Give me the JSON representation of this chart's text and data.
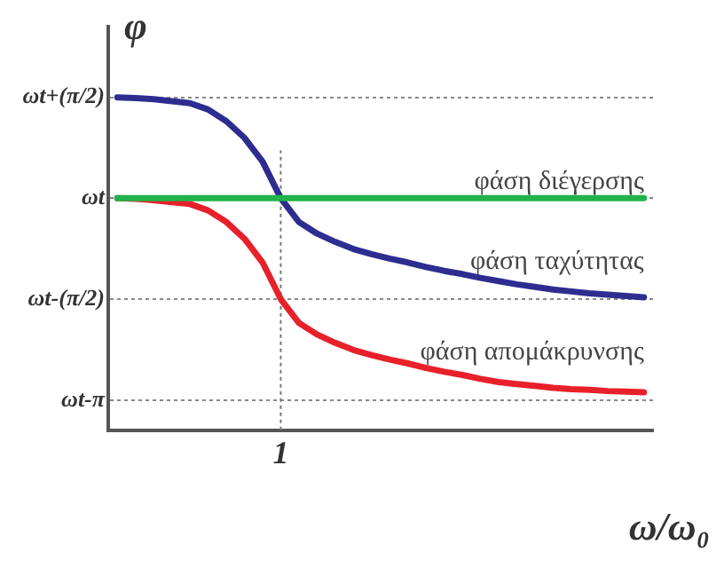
{
  "chart_data": {
    "type": "line",
    "xlabel": "ω/ω₀",
    "ylabel": "φ",
    "categories": [
      null,
      null,
      null,
      null,
      null,
      null,
      null,
      null,
      null,
      "1",
      null,
      null,
      null,
      null,
      null,
      null,
      null,
      null,
      null,
      null,
      null,
      null,
      null,
      null,
      null,
      null,
      null,
      null,
      null,
      null
    ],
    "ylim": [
      -3.61,
      2.67
    ],
    "yticks": [
      {
        "value": -3.1416,
        "label": "ωt-π"
      },
      {
        "value": -1.5708,
        "label": "ωt-(π/2)"
      },
      {
        "value": 0,
        "label": "ωt"
      },
      {
        "value": 1.5708,
        "label": "ωt+(π/2)"
      }
    ],
    "grid": "y",
    "legend": false,
    "marker": "none",
    "line_style": "solid",
    "ref_lines": [
      {
        "axis": "x",
        "value": "1",
        "label": null
      }
    ],
    "series": [
      {
        "name": "φάση διέγερσης",
        "color": "#22b24c",
        "values": [
          0,
          0,
          0,
          0,
          0,
          0,
          0,
          0,
          0,
          0,
          0,
          0,
          0,
          0,
          0,
          0,
          0,
          0,
          0,
          0,
          0,
          0,
          0,
          0,
          0,
          0,
          0,
          0,
          0,
          0
        ]
      },
      {
        "name": "φάση ταχύτητας",
        "color": "#2e2d8f",
        "values": [
          1.57,
          1.56,
          1.54,
          1.51,
          1.48,
          1.38,
          1.2,
          0.94,
          0.57,
          0,
          -0.37,
          -0.55,
          -0.68,
          -0.79,
          -0.87,
          -0.94,
          -1.0,
          -1.07,
          -1.13,
          -1.18,
          -1.24,
          -1.29,
          -1.34,
          -1.38,
          -1.42,
          -1.45,
          -1.48,
          -1.5,
          -1.52,
          -1.54
        ]
      },
      {
        "name": "φάση απομάκρυνσης",
        "color": "#e8202a",
        "values": [
          0,
          -0.01,
          -0.03,
          -0.06,
          -0.09,
          -0.19,
          -0.37,
          -0.63,
          -1.0,
          -1.57,
          -1.94,
          -2.12,
          -2.25,
          -2.36,
          -2.44,
          -2.51,
          -2.57,
          -2.64,
          -2.7,
          -2.75,
          -2.81,
          -2.86,
          -2.89,
          -2.92,
          -2.95,
          -2.97,
          -2.98,
          -3.0,
          -3.01,
          -3.02
        ]
      }
    ]
  }
}
